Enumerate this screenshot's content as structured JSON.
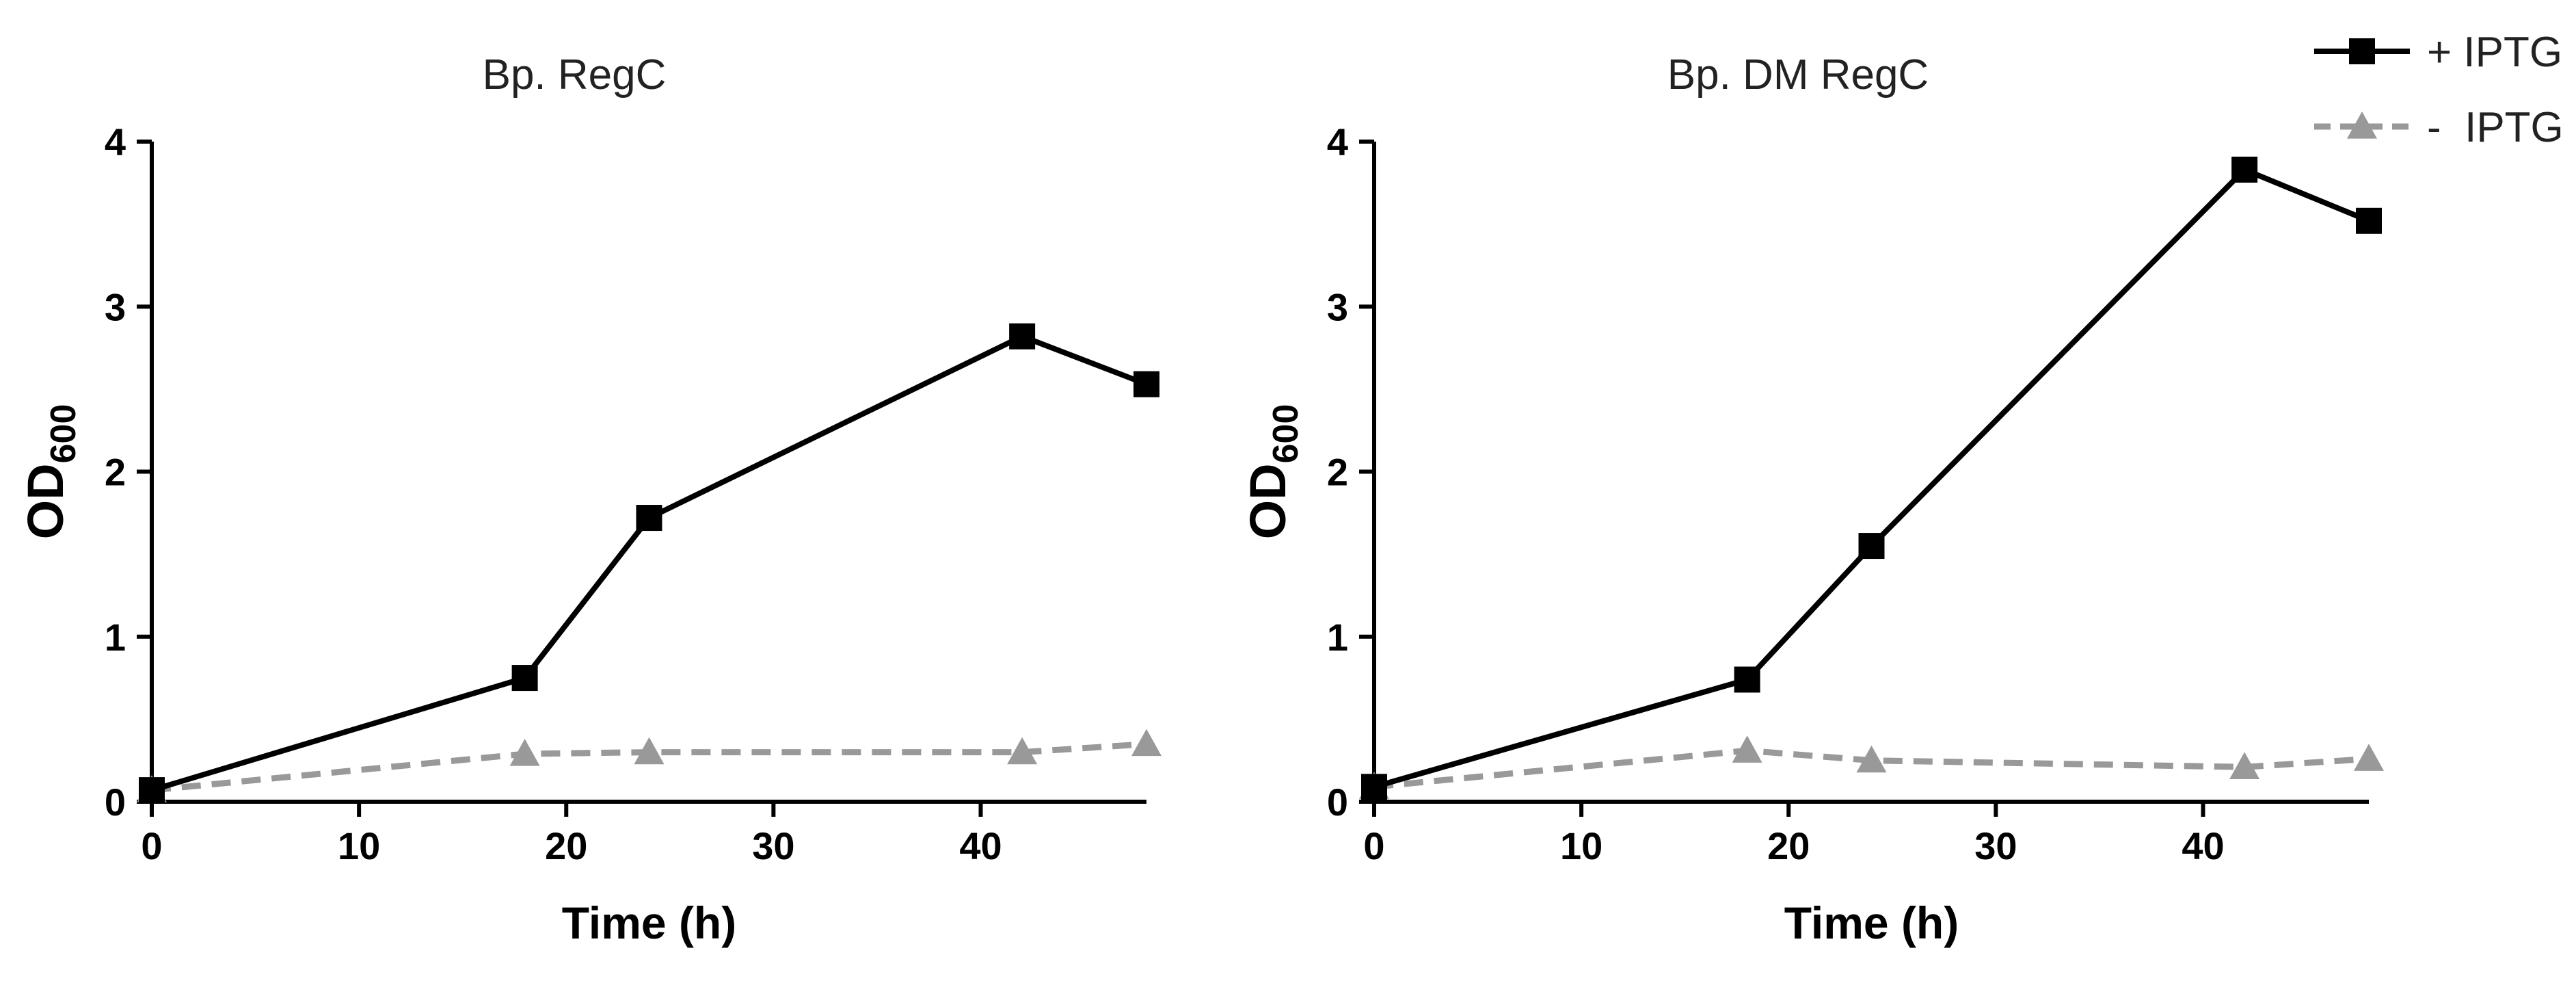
{
  "legend": {
    "position": "top-right",
    "items": [
      {
        "label": "+ IPTG",
        "color": "#000000",
        "marker": "square",
        "line": "solid"
      },
      {
        "label": "-  IPTG",
        "color": "#999999",
        "marker": "triangle",
        "line": "dashed"
      }
    ]
  },
  "chart_data": [
    {
      "type": "line",
      "title": "Bp. RegC",
      "xlabel": "Time (h)",
      "ylabel": {
        "main": "OD",
        "sub": "600"
      },
      "xlim": [
        0,
        48
      ],
      "ylim": [
        0,
        4
      ],
      "xticks": [
        0,
        10,
        20,
        30,
        40
      ],
      "yticks": [
        0,
        1,
        2,
        3,
        4
      ],
      "grid": false,
      "x": [
        0,
        18,
        24,
        42,
        48
      ],
      "series": [
        {
          "name": "+ IPTG",
          "values": [
            0.07,
            0.75,
            1.72,
            2.82,
            2.53
          ],
          "color": "#000000",
          "marker": "square",
          "line": "solid"
        },
        {
          "name": "-  IPTG",
          "values": [
            0.07,
            0.29,
            0.3,
            0.3,
            0.35
          ],
          "color": "#999999",
          "marker": "triangle",
          "line": "dashed"
        }
      ]
    },
    {
      "type": "line",
      "title": "Bp. DM RegC",
      "xlabel": "Time (h)",
      "ylabel": {
        "main": "OD",
        "sub": "600"
      },
      "xlim": [
        0,
        48
      ],
      "ylim": [
        0,
        4
      ],
      "xticks": [
        0,
        10,
        20,
        30,
        40
      ],
      "yticks": [
        0,
        1,
        2,
        3,
        4
      ],
      "grid": false,
      "x": [
        0,
        18,
        24,
        42,
        48
      ],
      "series": [
        {
          "name": "+ IPTG",
          "values": [
            0.09,
            0.74,
            1.55,
            3.83,
            3.52
          ],
          "color": "#000000",
          "marker": "square",
          "line": "solid"
        },
        {
          "name": "-  IPTG",
          "values": [
            0.09,
            0.31,
            0.25,
            0.21,
            0.26
          ],
          "color": "#999999",
          "marker": "triangle",
          "line": "dashed"
        }
      ]
    }
  ]
}
